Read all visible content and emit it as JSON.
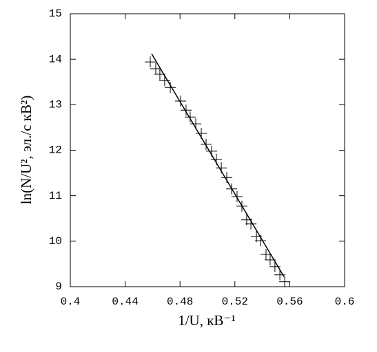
{
  "chart_data": {
    "type": "scatter",
    "xlabel": "1/U, кВ⁻¹",
    "ylabel": "ln(N/U², эл./с кВ²)",
    "series": [
      {
        "color": "#000000",
        "marker": "+",
        "x": [
          0.4583,
          0.4623,
          0.4653,
          0.4688,
          0.4729,
          0.4804,
          0.4844,
          0.4874,
          0.4915,
          0.4955,
          0.499,
          0.503,
          0.5065,
          0.5101,
          0.5141,
          0.5176,
          0.5216,
          0.5251,
          0.5286,
          0.5317,
          0.5357,
          0.5387,
          0.5427,
          0.5457,
          0.5492,
          0.5528,
          0.5563
        ],
        "values": [
          13.94,
          13.79,
          13.67,
          13.53,
          13.38,
          13.08,
          12.88,
          12.73,
          12.58,
          12.37,
          12.13,
          11.98,
          11.8,
          11.61,
          11.4,
          11.15,
          10.98,
          10.77,
          10.47,
          10.38,
          10.1,
          10.01,
          9.71,
          9.59,
          9.44,
          9.26,
          9.11
        ]
      },
      {
        "color": "#000000",
        "marker": "line",
        "x": [
          0.4593,
          0.5558
        ],
        "values": [
          14.12,
          9.22
        ]
      }
    ],
    "xlim": [
      0.4,
      0.6
    ],
    "xticks": [
      0.4,
      0.44,
      0.48,
      0.52,
      0.56,
      0.6
    ],
    "ylim": [
      9,
      15
    ],
    "yticks": [
      9,
      10,
      11,
      12,
      13,
      14,
      15
    ]
  }
}
